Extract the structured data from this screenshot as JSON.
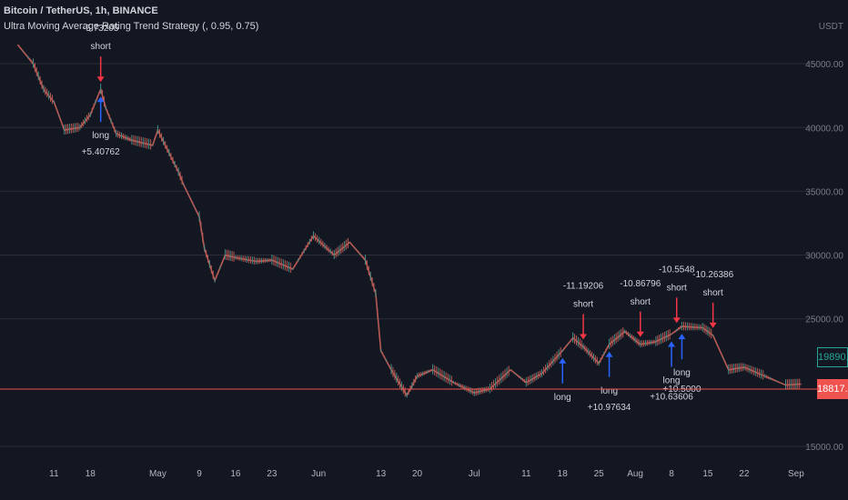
{
  "legend": {
    "symbol": "Bitcoin / TetherUS, 1h, BINANCE",
    "strategy": "Ultra Moving Average Rating Trend Strategy (, 0.95, 0.75)"
  },
  "colors": {
    "background": "#131722",
    "grid": "#2a2e39",
    "candles": "#b85a55",
    "long_arrow": "#2962ff",
    "short_arrow": "#f23645",
    "last_price_line": "#ef5350",
    "current_price_border": "#26a69a"
  },
  "price_axis_unit": "USDT",
  "current_price": "19890.41",
  "last_price": "18817.35",
  "chart_data": {
    "type": "line",
    "title": "Bitcoin / TetherUS, 1h, BINANCE",
    "x_ticks": [
      "11",
      "18",
      "May",
      "9",
      "16",
      "23",
      "Jun",
      "13",
      "20",
      "Jul",
      "11",
      "18",
      "25",
      "Aug",
      "8",
      "15",
      "22",
      "Sep"
    ],
    "y_ticks": [
      "45000.00",
      "40000.00",
      "35000.00",
      "30000.00",
      "25000.00",
      "15000.00"
    ],
    "ylim": [
      14000,
      50000
    ],
    "grid": true,
    "series": [
      {
        "name": "BTC/USDT",
        "x": [
          "Apr 4",
          "Apr 7",
          "Apr 9",
          "Apr 11",
          "Apr 13",
          "Apr 16",
          "Apr 18",
          "Apr 20",
          "Apr 21",
          "Apr 23",
          "Apr 26",
          "Apr 30",
          "May 1",
          "May 5",
          "May 6",
          "May 9",
          "May 10",
          "May 12",
          "May 14",
          "May 16",
          "May 20",
          "May 23",
          "May 27",
          "May 31",
          "Jun 4",
          "Jun 7",
          "Jun 10",
          "Jun 12",
          "Jun 13",
          "Jun 15",
          "Jun 18",
          "Jun 20",
          "Jun 23",
          "Jun 27",
          "Jul 1",
          "Jul 4",
          "Jul 8",
          "Jul 11",
          "Jul 14",
          "Jul 18",
          "Jul 20",
          "Jul 22",
          "Jul 25",
          "Jul 27",
          "Jul 30",
          "Aug 2",
          "Aug 5",
          "Aug 8",
          "Aug 10",
          "Aug 14",
          "Aug 16",
          "Aug 19",
          "Aug 22",
          "Aug 26",
          "Aug 30",
          "Sep 2"
        ],
        "y": [
          46500,
          45000,
          43000,
          42000,
          39800,
          40000,
          41000,
          43000,
          41500,
          39500,
          39000,
          38600,
          39800,
          36500,
          35500,
          33000,
          30500,
          28000,
          30000,
          29800,
          29500,
          29600,
          28900,
          31500,
          30000,
          31000,
          29600,
          27000,
          22500,
          21000,
          19000,
          20500,
          21000,
          20000,
          19200,
          19500,
          21000,
          20000,
          20700,
          22500,
          23500,
          22800,
          21500,
          23000,
          24000,
          23000,
          23200,
          23800,
          24400,
          24300,
          23700,
          21000,
          21200,
          20500,
          19800,
          19890
        ]
      }
    ],
    "trades": [
      {
        "x": "Apr 20",
        "side": "short",
        "value": "-5.73205",
        "label": "short"
      },
      {
        "x": "Apr 20",
        "side": "long",
        "value": "+5.40762",
        "label": "long"
      },
      {
        "x": "Jul 18",
        "side": "long",
        "value": "",
        "label": "long"
      },
      {
        "x": "Jul 22",
        "side": "short",
        "value": "-11.19206",
        "label": "short"
      },
      {
        "x": "Jul 27",
        "side": "long",
        "value": "+10.97634",
        "label": "long"
      },
      {
        "x": "Aug 2",
        "side": "short",
        "value": "-10.86796",
        "label": "short"
      },
      {
        "x": "Aug 8",
        "side": "long",
        "value": "+10.63606",
        "label": "long"
      },
      {
        "x": "Aug 9",
        "side": "short",
        "value": "-10.5548",
        "label": "short"
      },
      {
        "x": "Aug 10",
        "side": "long",
        "value": "+10.5000",
        "label": "long"
      },
      {
        "x": "Aug 16",
        "side": "short",
        "value": "-10.26386",
        "label": "short"
      }
    ]
  }
}
